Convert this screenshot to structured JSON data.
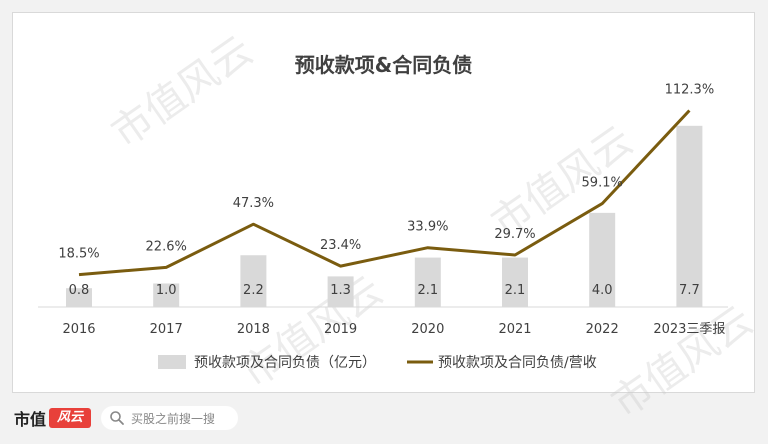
{
  "watermark": "市值风云",
  "chart_data": {
    "type": "bar",
    "title": "预收款项&合同负债",
    "categories": [
      "2016",
      "2017",
      "2018",
      "2019",
      "2020",
      "2021",
      "2022",
      "2023三季报"
    ],
    "series": [
      {
        "name": "预收款项及合同负债（亿元）",
        "type": "bar",
        "color": "#d9d9d9",
        "values": [
          0.8,
          1.0,
          2.2,
          1.3,
          2.1,
          2.1,
          4.0,
          7.7
        ],
        "labels": [
          "0.8",
          "1.0",
          "2.2",
          "1.3",
          "2.1",
          "2.1",
          "4.0",
          "7.7"
        ]
      },
      {
        "name": "预收款项及合同负债/营收",
        "type": "line",
        "color": "#7a5c0f",
        "values": [
          18.5,
          22.6,
          47.3,
          23.4,
          33.9,
          29.7,
          59.1,
          112.3
        ],
        "labels": [
          "18.5%",
          "22.6%",
          "47.3%",
          "23.4%",
          "33.9%",
          "29.7%",
          "59.1%",
          "112.3%"
        ]
      }
    ],
    "bar_axis_max": 8.5,
    "line_axis_max": 124,
    "grid": false,
    "legend_position": "bottom"
  },
  "footer": {
    "brand_text": "市值",
    "brand_mark": "风云",
    "search_placeholder": "买股之前搜一搜"
  }
}
